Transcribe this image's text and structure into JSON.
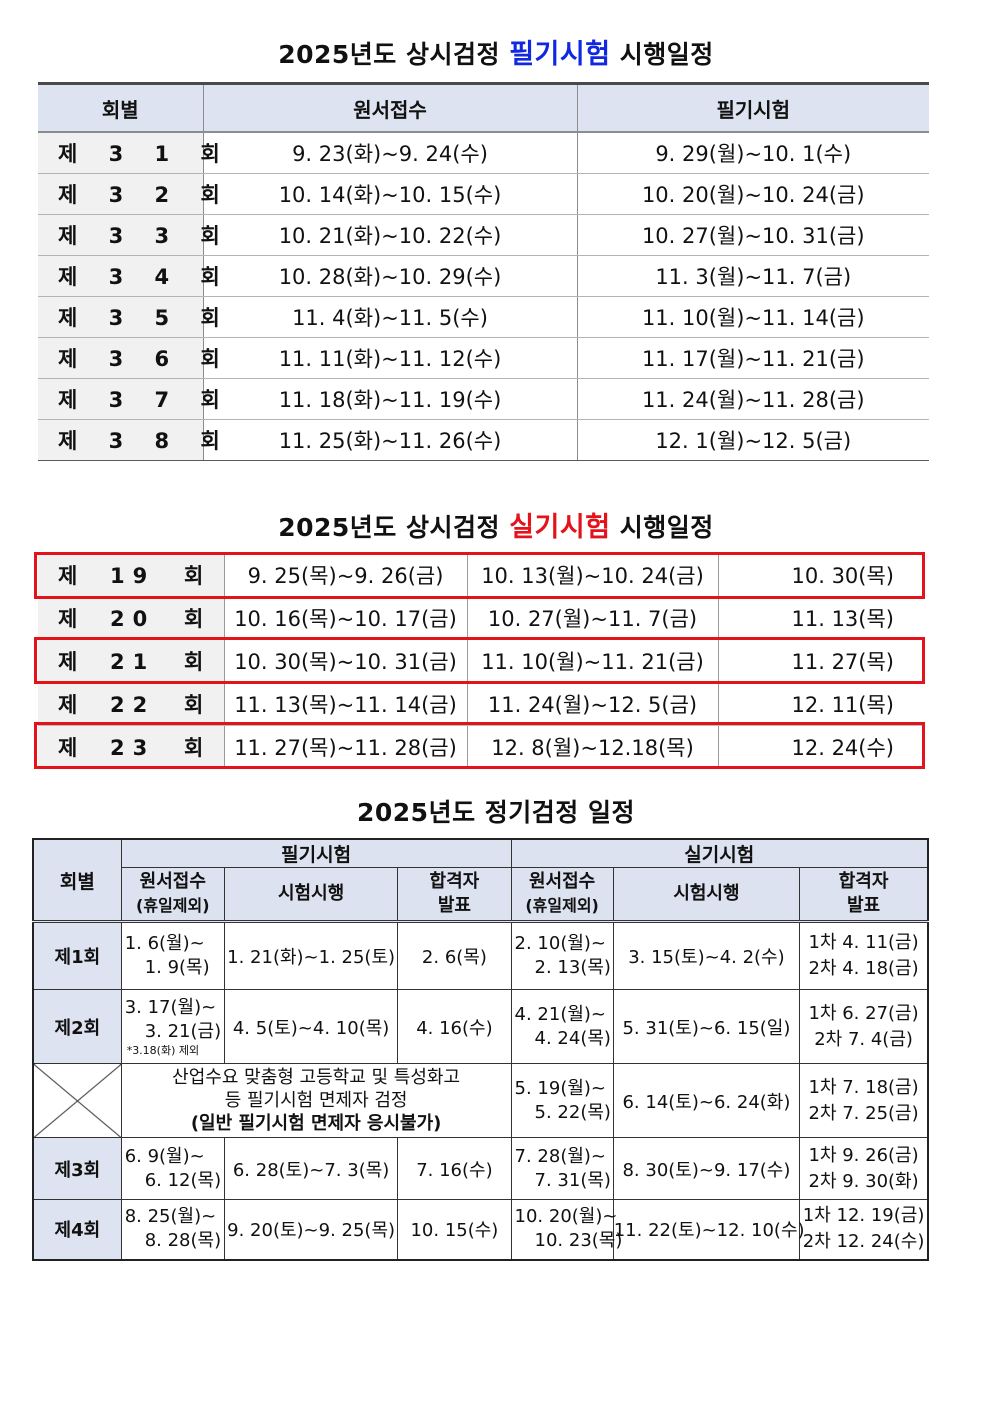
{
  "section1": {
    "title_pre": "2025년도 상시검정 ",
    "title_hl": "필기시험",
    "title_post": " 시행일정",
    "headers": [
      "회별",
      "원서접수",
      "필기시험"
    ],
    "rows": [
      {
        "round": "제 3 1 회",
        "apply": "9. 23(화)~9. 24(수)",
        "exam": "9. 29(월)~10. 1(수)"
      },
      {
        "round": "제 3 2 회",
        "apply": "10. 14(화)~10. 15(수)",
        "exam": "10. 20(월)~10. 24(금)"
      },
      {
        "round": "제 3 3 회",
        "apply": "10. 21(화)~10. 22(수)",
        "exam": "10. 27(월)~10. 31(금)"
      },
      {
        "round": "제 3 4 회",
        "apply": "10. 28(화)~10. 29(수)",
        "exam": "11. 3(월)~11. 7(금)"
      },
      {
        "round": "제 3 5 회",
        "apply": "11. 4(화)~11. 5(수)",
        "exam": "11. 10(월)~11. 14(금)"
      },
      {
        "round": "제 3 6 회",
        "apply": "11. 11(화)~11. 12(수)",
        "exam": "11. 17(월)~11. 21(금)"
      },
      {
        "round": "제 3 7 회",
        "apply": "11. 18(화)~11. 19(수)",
        "exam": "11. 24(월)~11. 28(금)"
      },
      {
        "round": "제 3 8 회",
        "apply": "11. 25(화)~11. 26(수)",
        "exam": "12. 1(월)~12. 5(금)"
      }
    ]
  },
  "section2": {
    "title_pre": "2025년도 상시검정 ",
    "title_hl": "실기시험",
    "title_post": " 시행일정",
    "rows": [
      {
        "ja": "제",
        "num": "19",
        "hoe": "회",
        "apply": "9. 25(목)~9. 26(금)",
        "exam": "10. 13(월)~10. 24(금)",
        "result": "10. 30(목)"
      },
      {
        "ja": "제",
        "num": "20",
        "hoe": "회",
        "apply": "10. 16(목)~10. 17(금)",
        "exam": "10. 27(월)~11. 7(금)",
        "result": "11. 13(목)"
      },
      {
        "ja": "제",
        "num": "21",
        "hoe": "회",
        "apply": "10. 30(목)~10. 31(금)",
        "exam": "11. 10(월)~11. 21(금)",
        "result": "11. 27(목)"
      },
      {
        "ja": "제",
        "num": "22",
        "hoe": "회",
        "apply": "11. 13(목)~11. 14(금)",
        "exam": "11. 24(월)~12. 5(금)",
        "result": "12. 11(목)"
      },
      {
        "ja": "제",
        "num": "23",
        "hoe": "회",
        "apply": "11. 27(목)~11. 28(금)",
        "exam": "12. 8(월)~12.18(목)",
        "result": "12. 24(수)"
      }
    ]
  },
  "section3": {
    "title": "2025년도 정기검정 일정",
    "headers": {
      "round": "회별",
      "written": "필기시험",
      "practical": "실기시험",
      "apply": "원서접수",
      "apply_sub": "(휴일제외)",
      "exam": "시험시행",
      "result_1": "합격자",
      "result_2": "발표"
    },
    "rows": [
      {
        "round": "제1회",
        "w_apply": [
          "1. 6(월)~",
          "1. 9(목)"
        ],
        "w_exam": "1. 21(화)~1. 25(토)",
        "w_result": "2. 6(목)",
        "p_apply": [
          "2. 10(월)~",
          "2. 13(목)"
        ],
        "p_exam": "3. 15(토)~4. 2(수)",
        "p_result": [
          "1차 4. 11(금)",
          "2차 4. 18(금)"
        ]
      },
      {
        "round": "제2회",
        "w_apply": [
          "3. 17(월)~",
          "3. 21(금)"
        ],
        "w_note": "*3.18(화) 제외",
        "w_exam": "4. 5(토)~4. 10(목)",
        "w_result": "4. 16(수)",
        "p_apply": [
          "4. 21(월)~",
          "4. 24(목)"
        ],
        "p_exam": "5. 31(토)~6. 15(일)",
        "p_result": [
          "1차 6. 27(금)",
          "2차 7. 4(금)"
        ]
      },
      {
        "merged": [
          "산업수요 맞춤형 고등학교 및 특성화고",
          "등 필기시험 면제자 검정",
          "(일반 필기시험 면제자 응시불가)"
        ],
        "p_apply": [
          "5. 19(월)~",
          "5. 22(목)"
        ],
        "p_exam": "6. 14(토)~6. 24(화)",
        "p_result": [
          "1차 7. 18(금)",
          "2차 7. 25(금)"
        ]
      },
      {
        "round": "제3회",
        "w_apply": [
          "6. 9(월)~",
          "6. 12(목)"
        ],
        "w_exam": "6. 28(토)~7. 3(목)",
        "w_result": "7. 16(수)",
        "p_apply": [
          "7. 28(월)~",
          "7. 31(목)"
        ],
        "p_exam": "8. 30(토)~9. 17(수)",
        "p_result": [
          "1차 9. 26(금)",
          "2차 9. 30(화)"
        ]
      },
      {
        "round": "제4회",
        "w_apply": [
          "8. 25(월)~",
          "8. 28(목)"
        ],
        "w_exam": "9. 20(토)~9. 25(목)",
        "w_result": "10. 15(수)",
        "p_apply": [
          "10. 20(월)~",
          "10. 23(목)"
        ],
        "p_exam": "11. 22(토)~12. 10(수)",
        "p_result": [
          "1차 12. 19(금)",
          "2차 12. 24(수)"
        ]
      }
    ]
  },
  "colors": {
    "written_highlight": "#1028e0",
    "practical_highlight": "#e3121b",
    "header_fill": "#dde3f0"
  }
}
